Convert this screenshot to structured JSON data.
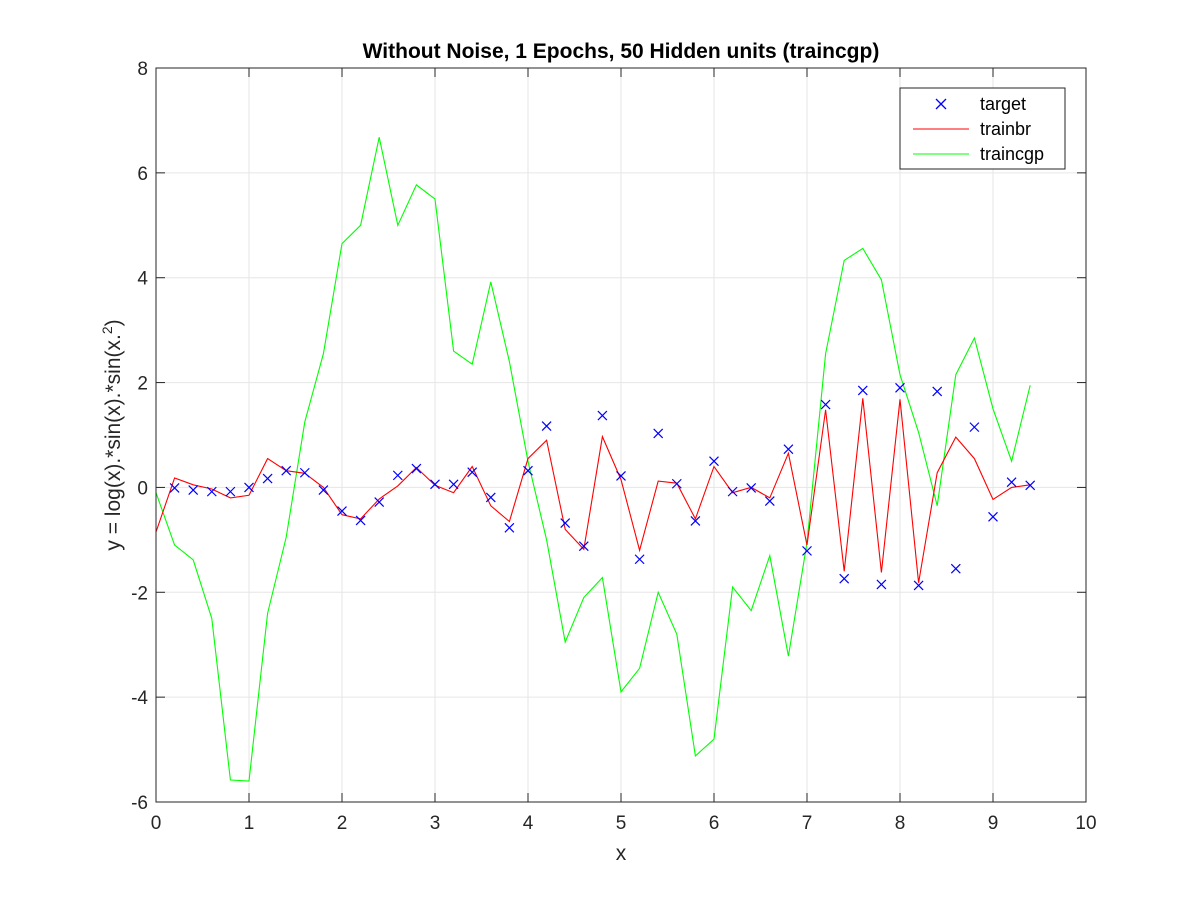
{
  "chart_data": {
    "type": "line",
    "title": "Without Noise, 1 Epochs, 50 Hidden units (traincgp)",
    "xlabel": "x",
    "ylabel_prefix": "y = log(x).*sin(x).*sin(x.",
    "ylabel_sup": "2",
    "ylabel_suffix": ")",
    "xlim": [
      0,
      10
    ],
    "ylim": [
      -6,
      8
    ],
    "xticks": [
      0,
      1,
      2,
      3,
      4,
      5,
      6,
      7,
      8,
      9,
      10
    ],
    "yticks": [
      -6,
      -4,
      -2,
      0,
      2,
      4,
      6,
      8
    ],
    "grid": true,
    "legend_position": "top-right",
    "x": [
      0,
      0.2,
      0.4,
      0.6,
      0.8,
      1.0,
      1.2,
      1.4,
      1.6,
      1.8,
      2.0,
      2.2,
      2.4,
      2.6,
      2.8,
      3.0,
      3.2,
      3.4,
      3.6,
      3.8,
      4.0,
      4.2,
      4.4,
      4.6,
      4.8,
      5.0,
      5.2,
      5.4,
      5.6,
      5.8,
      6.0,
      6.2,
      6.4,
      6.6,
      6.8,
      7.0,
      7.2,
      7.4,
      7.6,
      7.8,
      8.0,
      8.2,
      8.4,
      8.6,
      8.8,
      9.0,
      9.2,
      9.4
    ],
    "series": [
      {
        "name": "target",
        "style": "marker-x",
        "color": "#0000ff",
        "x": [
          0.2,
          0.4,
          0.6,
          0.8,
          1.0,
          1.2,
          1.4,
          1.6,
          1.8,
          2.0,
          2.2,
          2.4,
          2.6,
          2.8,
          3.0,
          3.2,
          3.4,
          3.6,
          3.8,
          4.0,
          4.2,
          4.4,
          4.6,
          4.8,
          5.0,
          5.2,
          5.4,
          5.6,
          5.8,
          6.0,
          6.2,
          6.4,
          6.6,
          6.8,
          7.0,
          7.2,
          7.4,
          7.6,
          7.8,
          8.0,
          8.2,
          8.4,
          8.6,
          8.8,
          9.0,
          9.2,
          9.4
        ],
        "values": [
          -0.01,
          -0.05,
          -0.08,
          -0.08,
          0.0,
          0.17,
          0.32,
          0.28,
          -0.05,
          -0.45,
          -0.63,
          -0.28,
          0.23,
          0.36,
          0.06,
          0.06,
          0.29,
          -0.19,
          -0.77,
          0.32,
          1.17,
          -0.68,
          -1.12,
          1.37,
          0.22,
          -1.37,
          1.03,
          0.07,
          -0.64,
          0.5,
          -0.08,
          -0.01,
          -0.26,
          0.73,
          -1.21,
          1.58,
          -1.74,
          1.85,
          -1.85,
          1.9,
          -1.87,
          1.83,
          -1.55,
          1.15,
          -0.56,
          0.1,
          0.04
        ]
      },
      {
        "name": "trainbr",
        "style": "line",
        "color": "#ff0000",
        "x": [
          0,
          0.2,
          0.4,
          0.6,
          0.8,
          1.0,
          1.2,
          1.4,
          1.6,
          1.8,
          2.0,
          2.2,
          2.4,
          2.6,
          2.8,
          3.0,
          3.2,
          3.4,
          3.6,
          3.8,
          4.0,
          4.2,
          4.4,
          4.6,
          4.8,
          5.0,
          5.2,
          5.4,
          5.6,
          5.8,
          6.0,
          6.2,
          6.4,
          6.6,
          6.8,
          7.0,
          7.2,
          7.4,
          7.6,
          7.8,
          8.0,
          8.2,
          8.4,
          8.6,
          8.8,
          9.0,
          9.2,
          9.4
        ],
        "values": [
          -0.85,
          0.18,
          0.05,
          -0.03,
          -0.2,
          -0.15,
          0.55,
          0.32,
          0.27,
          0.0,
          -0.52,
          -0.6,
          -0.22,
          0.03,
          0.38,
          0.04,
          -0.1,
          0.4,
          -0.35,
          -0.65,
          0.55,
          0.9,
          -0.8,
          -1.18,
          0.97,
          0.15,
          -1.2,
          0.12,
          0.08,
          -0.6,
          0.4,
          -0.1,
          0.0,
          -0.2,
          0.65,
          -1.1,
          1.48,
          -1.6,
          1.7,
          -1.62,
          1.68,
          -1.82,
          0.28,
          0.96,
          0.55,
          -0.23,
          0.0,
          0.05
        ]
      },
      {
        "name": "traincgp",
        "style": "line",
        "color": "#00ff00",
        "x": [
          0,
          0.2,
          0.4,
          0.6,
          0.8,
          1.0,
          1.2,
          1.4,
          1.6,
          1.8,
          2.0,
          2.2,
          2.4,
          2.6,
          2.8,
          3.0,
          3.2,
          3.4,
          3.6,
          3.8,
          4.0,
          4.2,
          4.4,
          4.6,
          4.8,
          5.0,
          5.2,
          5.4,
          5.6,
          5.8,
          6.0,
          6.2,
          6.4,
          6.6,
          6.8,
          7.0,
          7.2,
          7.4,
          7.6,
          7.8,
          8.0,
          8.2,
          8.4,
          8.6,
          8.8,
          9.0,
          9.2,
          9.4
        ],
        "values": [
          -0.1,
          -1.1,
          -1.38,
          -2.5,
          -5.58,
          -5.6,
          -2.4,
          -0.95,
          1.25,
          2.55,
          4.65,
          5.0,
          6.68,
          5.0,
          5.77,
          5.5,
          2.6,
          2.35,
          3.92,
          2.4,
          0.5,
          -1.0,
          -2.95,
          -2.1,
          -1.72,
          -3.9,
          -3.45,
          -2.0,
          -2.8,
          -5.12,
          -4.8,
          -1.9,
          -2.35,
          -1.3,
          -3.22,
          -1.05,
          2.55,
          4.33,
          4.56,
          3.96,
          2.15,
          1.05,
          -0.35,
          2.15,
          2.85,
          1.5,
          0.5,
          1.95
        ]
      }
    ],
    "legend": [
      "target",
      "trainbr",
      "traincgp"
    ]
  }
}
